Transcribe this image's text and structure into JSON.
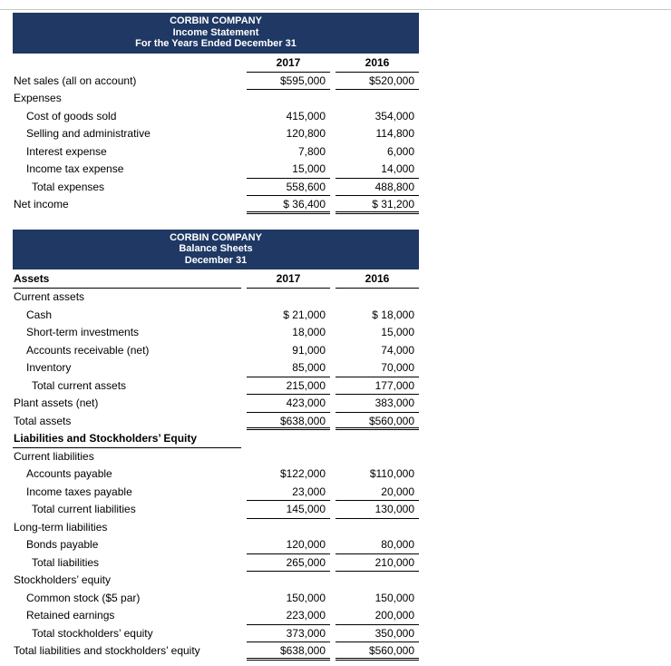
{
  "colors": {
    "header_bg": "#1f3864",
    "header_text": "#ffffff",
    "frame_line": "#c8c8c8"
  },
  "income_statement": {
    "title_lines": [
      "CORBIN COMPANY",
      "Income Statement",
      "For the Years Ended December 31"
    ],
    "columns": [
      "2017",
      "2016"
    ],
    "rows": [
      {
        "label": "Net sales (all on account)",
        "indent": 0,
        "v2017": "$595,000",
        "v2016": "$520,000",
        "u": "single"
      },
      {
        "label": "Expenses",
        "indent": 0,
        "v2017": "",
        "v2016": "",
        "u": "none"
      },
      {
        "label": "Cost of goods sold",
        "indent": 1,
        "v2017": "415,000",
        "v2016": "354,000",
        "u": "none"
      },
      {
        "label": "Selling and administrative",
        "indent": 1,
        "v2017": "120,800",
        "v2016": "114,800",
        "u": "none"
      },
      {
        "label": "Interest expense",
        "indent": 1,
        "v2017": "7,800",
        "v2016": "6,000",
        "u": "none"
      },
      {
        "label": "Income tax expense",
        "indent": 1,
        "v2017": "15,000",
        "v2016": "14,000",
        "u": "single"
      },
      {
        "label": "Total expenses",
        "indent": 2,
        "v2017": "558,600",
        "v2016": "488,800",
        "u": "single"
      },
      {
        "label": "Net income",
        "indent": 0,
        "v2017": "$ 36,400",
        "v2016": "$ 31,200",
        "u": "double"
      }
    ]
  },
  "balance_sheet": {
    "title_lines": [
      "CORBIN COMPANY",
      "Balance Sheets",
      "December 31"
    ],
    "assets_label": "Assets",
    "columns": [
      "2017",
      "2016"
    ],
    "rows": [
      {
        "label": "Current assets",
        "indent": 0,
        "v2017": "",
        "v2016": "",
        "u": "none"
      },
      {
        "label": "Cash",
        "indent": 1,
        "v2017": "$ 21,000",
        "v2016": "$ 18,000",
        "u": "none"
      },
      {
        "label": "Short-term investments",
        "indent": 1,
        "v2017": "18,000",
        "v2016": "15,000",
        "u": "none"
      },
      {
        "label": "Accounts receivable (net)",
        "indent": 1,
        "v2017": "91,000",
        "v2016": "74,000",
        "u": "none"
      },
      {
        "label": "Inventory",
        "indent": 1,
        "v2017": "85,000",
        "v2016": "70,000",
        "u": "single"
      },
      {
        "label": "Total current assets",
        "indent": 2,
        "v2017": "215,000",
        "v2016": "177,000",
        "u": "single"
      },
      {
        "label": "Plant assets (net)",
        "indent": 0,
        "v2017": "423,000",
        "v2016": "383,000",
        "u": "single"
      },
      {
        "label": "Total assets",
        "indent": 0,
        "v2017": "$638,000",
        "v2016": "$560,000",
        "u": "double"
      },
      {
        "label": "Liabilities and Stockholders’ Equity",
        "indent": 0,
        "v2017": "",
        "v2016": "",
        "u": "none",
        "bold": true,
        "label_underline": true
      },
      {
        "label": "Current liabilities",
        "indent": 0,
        "v2017": "",
        "v2016": "",
        "u": "none"
      },
      {
        "label": "Accounts payable",
        "indent": 1,
        "v2017": "$122,000",
        "v2016": "$110,000",
        "u": "none"
      },
      {
        "label": "Income taxes payable",
        "indent": 1,
        "v2017": "23,000",
        "v2016": "20,000",
        "u": "single"
      },
      {
        "label": "Total current liabilities",
        "indent": 2,
        "v2017": "145,000",
        "v2016": "130,000",
        "u": "single"
      },
      {
        "label": "Long-term liabilities",
        "indent": 0,
        "v2017": "",
        "v2016": "",
        "u": "none"
      },
      {
        "label": "Bonds payable",
        "indent": 1,
        "v2017": "120,000",
        "v2016": "80,000",
        "u": "single"
      },
      {
        "label": "Total liabilities",
        "indent": 2,
        "v2017": "265,000",
        "v2016": "210,000",
        "u": "single"
      },
      {
        "label": "Stockholders’ equity",
        "indent": 0,
        "v2017": "",
        "v2016": "",
        "u": "none"
      },
      {
        "label": "Common stock ($5 par)",
        "indent": 1,
        "v2017": "150,000",
        "v2016": "150,000",
        "u": "none"
      },
      {
        "label": "Retained earnings",
        "indent": 1,
        "v2017": "223,000",
        "v2016": "200,000",
        "u": "single"
      },
      {
        "label": "Total stockholders’ equity",
        "indent": 2,
        "v2017": "373,000",
        "v2016": "350,000",
        "u": "single"
      },
      {
        "label": "Total liabilities and stockholders’ equity",
        "indent": 0,
        "v2017": "$638,000",
        "v2016": "$560,000",
        "u": "double"
      }
    ]
  }
}
